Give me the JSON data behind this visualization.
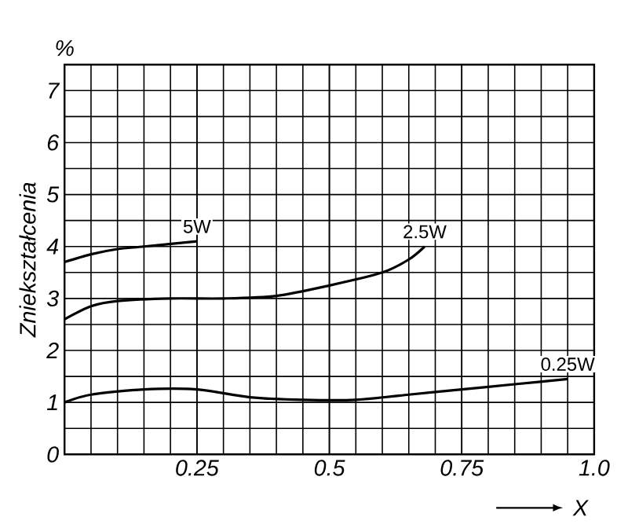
{
  "chart_data": {
    "type": "line",
    "ylabel": "Zniekształcenia",
    "xlabel": "X",
    "annotations": [
      "%"
    ],
    "xlim": [
      0,
      1.0
    ],
    "ylim": [
      0,
      7.5
    ],
    "xticks": [
      {
        "value": 0.25,
        "label": "0.25"
      },
      {
        "value": 0.5,
        "label": "0.5"
      },
      {
        "value": 0.75,
        "label": "0.75"
      },
      {
        "value": 1.0,
        "label": "1.0"
      }
    ],
    "yticks": [
      0,
      1,
      2,
      3,
      4,
      5,
      6,
      7
    ],
    "grid": true,
    "line_style": "solid",
    "marker": "none",
    "series": [
      {
        "name": "5W",
        "color": "#000000",
        "x": [
          0,
          0.05,
          0.1,
          0.15,
          0.25
        ],
        "values": [
          3.7,
          3.85,
          3.95,
          4.0,
          4.1
        ]
      },
      {
        "name": "2.5W",
        "color": "#000000",
        "x": [
          0,
          0.05,
          0.1,
          0.2,
          0.3,
          0.4,
          0.5,
          0.6,
          0.65,
          0.68
        ],
        "values": [
          2.6,
          2.85,
          2.95,
          3.0,
          3.0,
          3.05,
          3.25,
          3.5,
          3.75,
          4.0
        ]
      },
      {
        "name": "0.25W",
        "color": "#000000",
        "x": [
          0,
          0.05,
          0.15,
          0.25,
          0.35,
          0.45,
          0.55,
          0.65,
          0.75,
          0.85,
          0.95
        ],
        "values": [
          1.0,
          1.15,
          1.25,
          1.25,
          1.1,
          1.05,
          1.05,
          1.15,
          1.25,
          1.35,
          1.45
        ]
      }
    ]
  }
}
